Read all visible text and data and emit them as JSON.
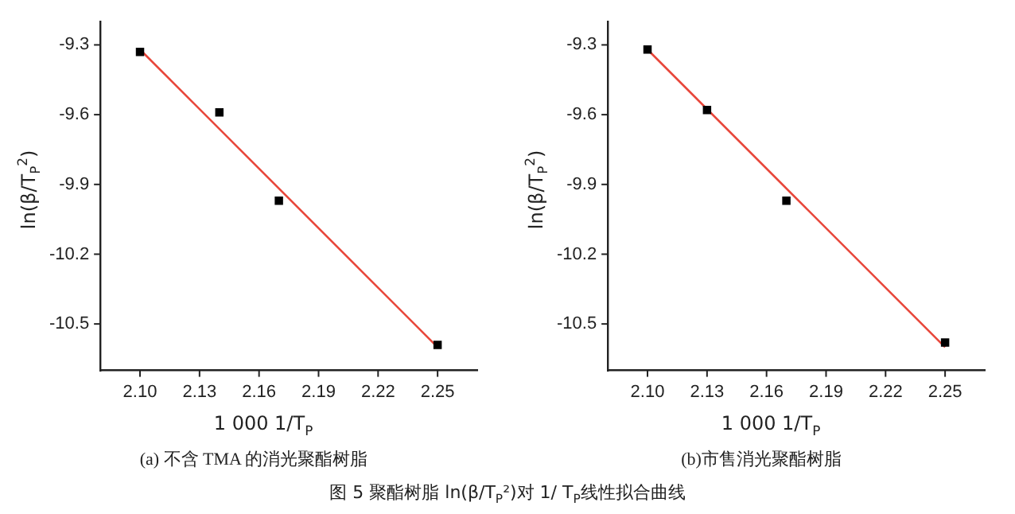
{
  "chart_data": [
    {
      "type": "scatter",
      "title": "(a) 不含 TMA 的消光聚酯树脂",
      "xlabel": "1 000 1/T$_{P}$",
      "ylabel": "ln(β/T$_{P}$$^{2}$)",
      "annotations": [
        "图 5 聚酯树脂 ln(β/T$_{P}$²)对 1/ T$_{P}$线性拟合曲线"
      ],
      "xlim": [
        2.08,
        2.27
      ],
      "xticks": [
        {
          "value": 2.1,
          "label": "2.10"
        },
        2.13,
        2.16,
        2.19,
        2.22,
        2.25
      ],
      "ylim": [
        -10.7,
        -9.2
      ],
      "yticks": [
        -10.5,
        -10.2,
        -9.9,
        -9.6,
        -9.3
      ],
      "grid": false,
      "legend": false,
      "series": [
        {
          "color": "#000000",
          "marker": "square",
          "x": [
            2.1,
            2.14,
            2.17,
            2.25
          ],
          "values": [
            -9.33,
            -9.59,
            -9.97,
            -10.59
          ]
        },
        {
          "type": "line",
          "color": "#e8463a",
          "marker": "none",
          "line_style": "solid",
          "x": [
            2.1,
            2.25
          ],
          "values": [
            -9.32,
            -10.6
          ]
        }
      ]
    },
    {
      "type": "scatter",
      "title": "(b)市售消光聚酯树脂",
      "xlabel": "1 000 1/T$_{P}$",
      "ylabel": "ln(β/T$_{P}$$^{2}$)",
      "xlim": [
        2.08,
        2.27
      ],
      "xticks": [
        {
          "value": 2.1,
          "label": "2.10"
        },
        2.13,
        2.16,
        2.19,
        2.22,
        2.25
      ],
      "ylim": [
        -10.7,
        -9.2
      ],
      "yticks": [
        -10.5,
        -10.2,
        -9.9,
        -9.6,
        -9.3
      ],
      "grid": false,
      "legend": false,
      "series": [
        {
          "color": "#000000",
          "marker": "square",
          "x": [
            2.1,
            2.13,
            2.17,
            2.25
          ],
          "values": [
            -9.32,
            -9.58,
            -9.97,
            -10.58
          ]
        },
        {
          "type": "line",
          "color": "#e8463a",
          "marker": "none",
          "line_style": "solid",
          "x": [
            2.1,
            2.25
          ],
          "values": [
            -9.32,
            -10.6
          ]
        }
      ]
    }
  ]
}
